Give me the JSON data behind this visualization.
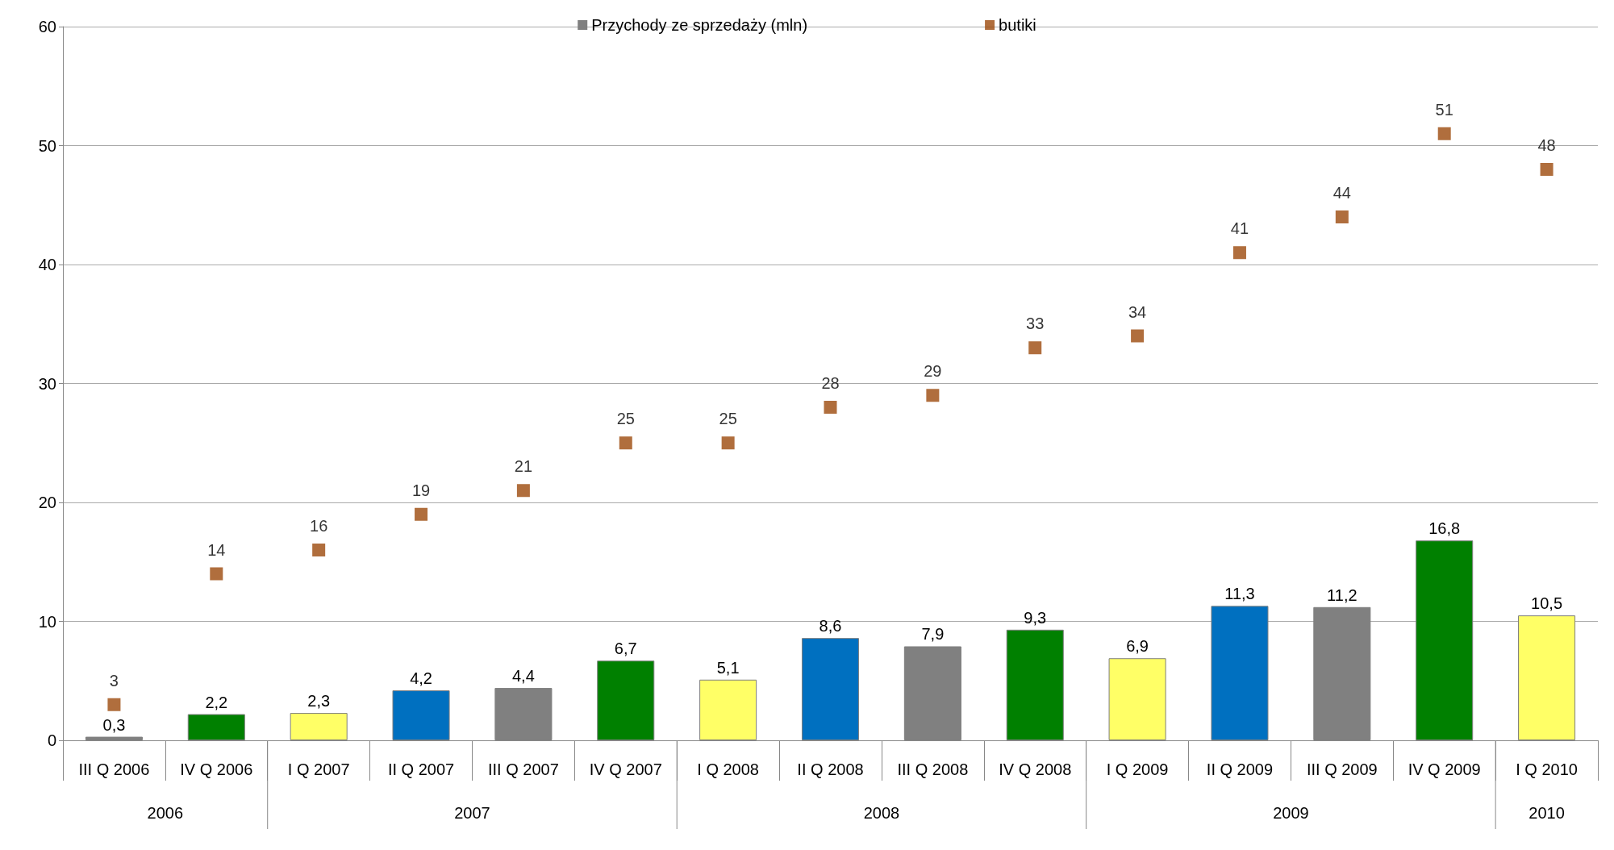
{
  "chart_data": {
    "type": "bar",
    "categories": [
      "III Q 2006",
      "IV Q 2006",
      "I Q 2007",
      "II Q 2007",
      "III Q 2007",
      "IV Q 2007",
      "I Q 2008",
      "II Q 2008",
      "III Q 2008",
      "IV Q 2008",
      "I Q 2009",
      "II Q 2009",
      "III Q 2009",
      "IV Q 2009",
      "I Q 2010"
    ],
    "series": [
      {
        "name": "Przychody ze sprzedaży (mln)",
        "type": "bar",
        "color": "#808080",
        "colors": [
          "#808080",
          "#008000",
          "#ffff66",
          "#0070c0",
          "#808080",
          "#008000",
          "#ffff66",
          "#0070c0",
          "#808080",
          "#008000",
          "#ffff66",
          "#0070c0",
          "#808080",
          "#008000",
          "#ffff66"
        ],
        "values": [
          0.3,
          2.2,
          2.3,
          4.2,
          4.4,
          6.7,
          5.1,
          8.6,
          7.9,
          9.3,
          6.9,
          11.3,
          11.2,
          16.8,
          10.5
        ],
        "value_labels": [
          "0,3",
          "2,2",
          "2,3",
          "4,2",
          "4,4",
          "6,7",
          "5,1",
          "8,6",
          "7,9",
          "9,3",
          "6,9",
          "11,3",
          "11,2",
          "16,8",
          "10,5"
        ]
      },
      {
        "name": "butiki",
        "type": "scatter",
        "color": "#9c4a0c",
        "marker": "square",
        "values": [
          3,
          14,
          16,
          19,
          21,
          25,
          25,
          28,
          29,
          33,
          34,
          41,
          44,
          51,
          48
        ],
        "value_labels": [
          "3",
          "14",
          "16",
          "19",
          "21",
          "25",
          "25",
          "28",
          "29",
          "33",
          "34",
          "41",
          "44",
          "51",
          "48"
        ]
      }
    ],
    "annotations": [
      "2006",
      "2007",
      "2008",
      "2009",
      "2010"
    ],
    "ylim": [
      0,
      60
    ],
    "yticks": [
      0,
      10,
      20,
      30,
      40,
      50,
      60
    ],
    "grid": "y",
    "legend": "top"
  }
}
